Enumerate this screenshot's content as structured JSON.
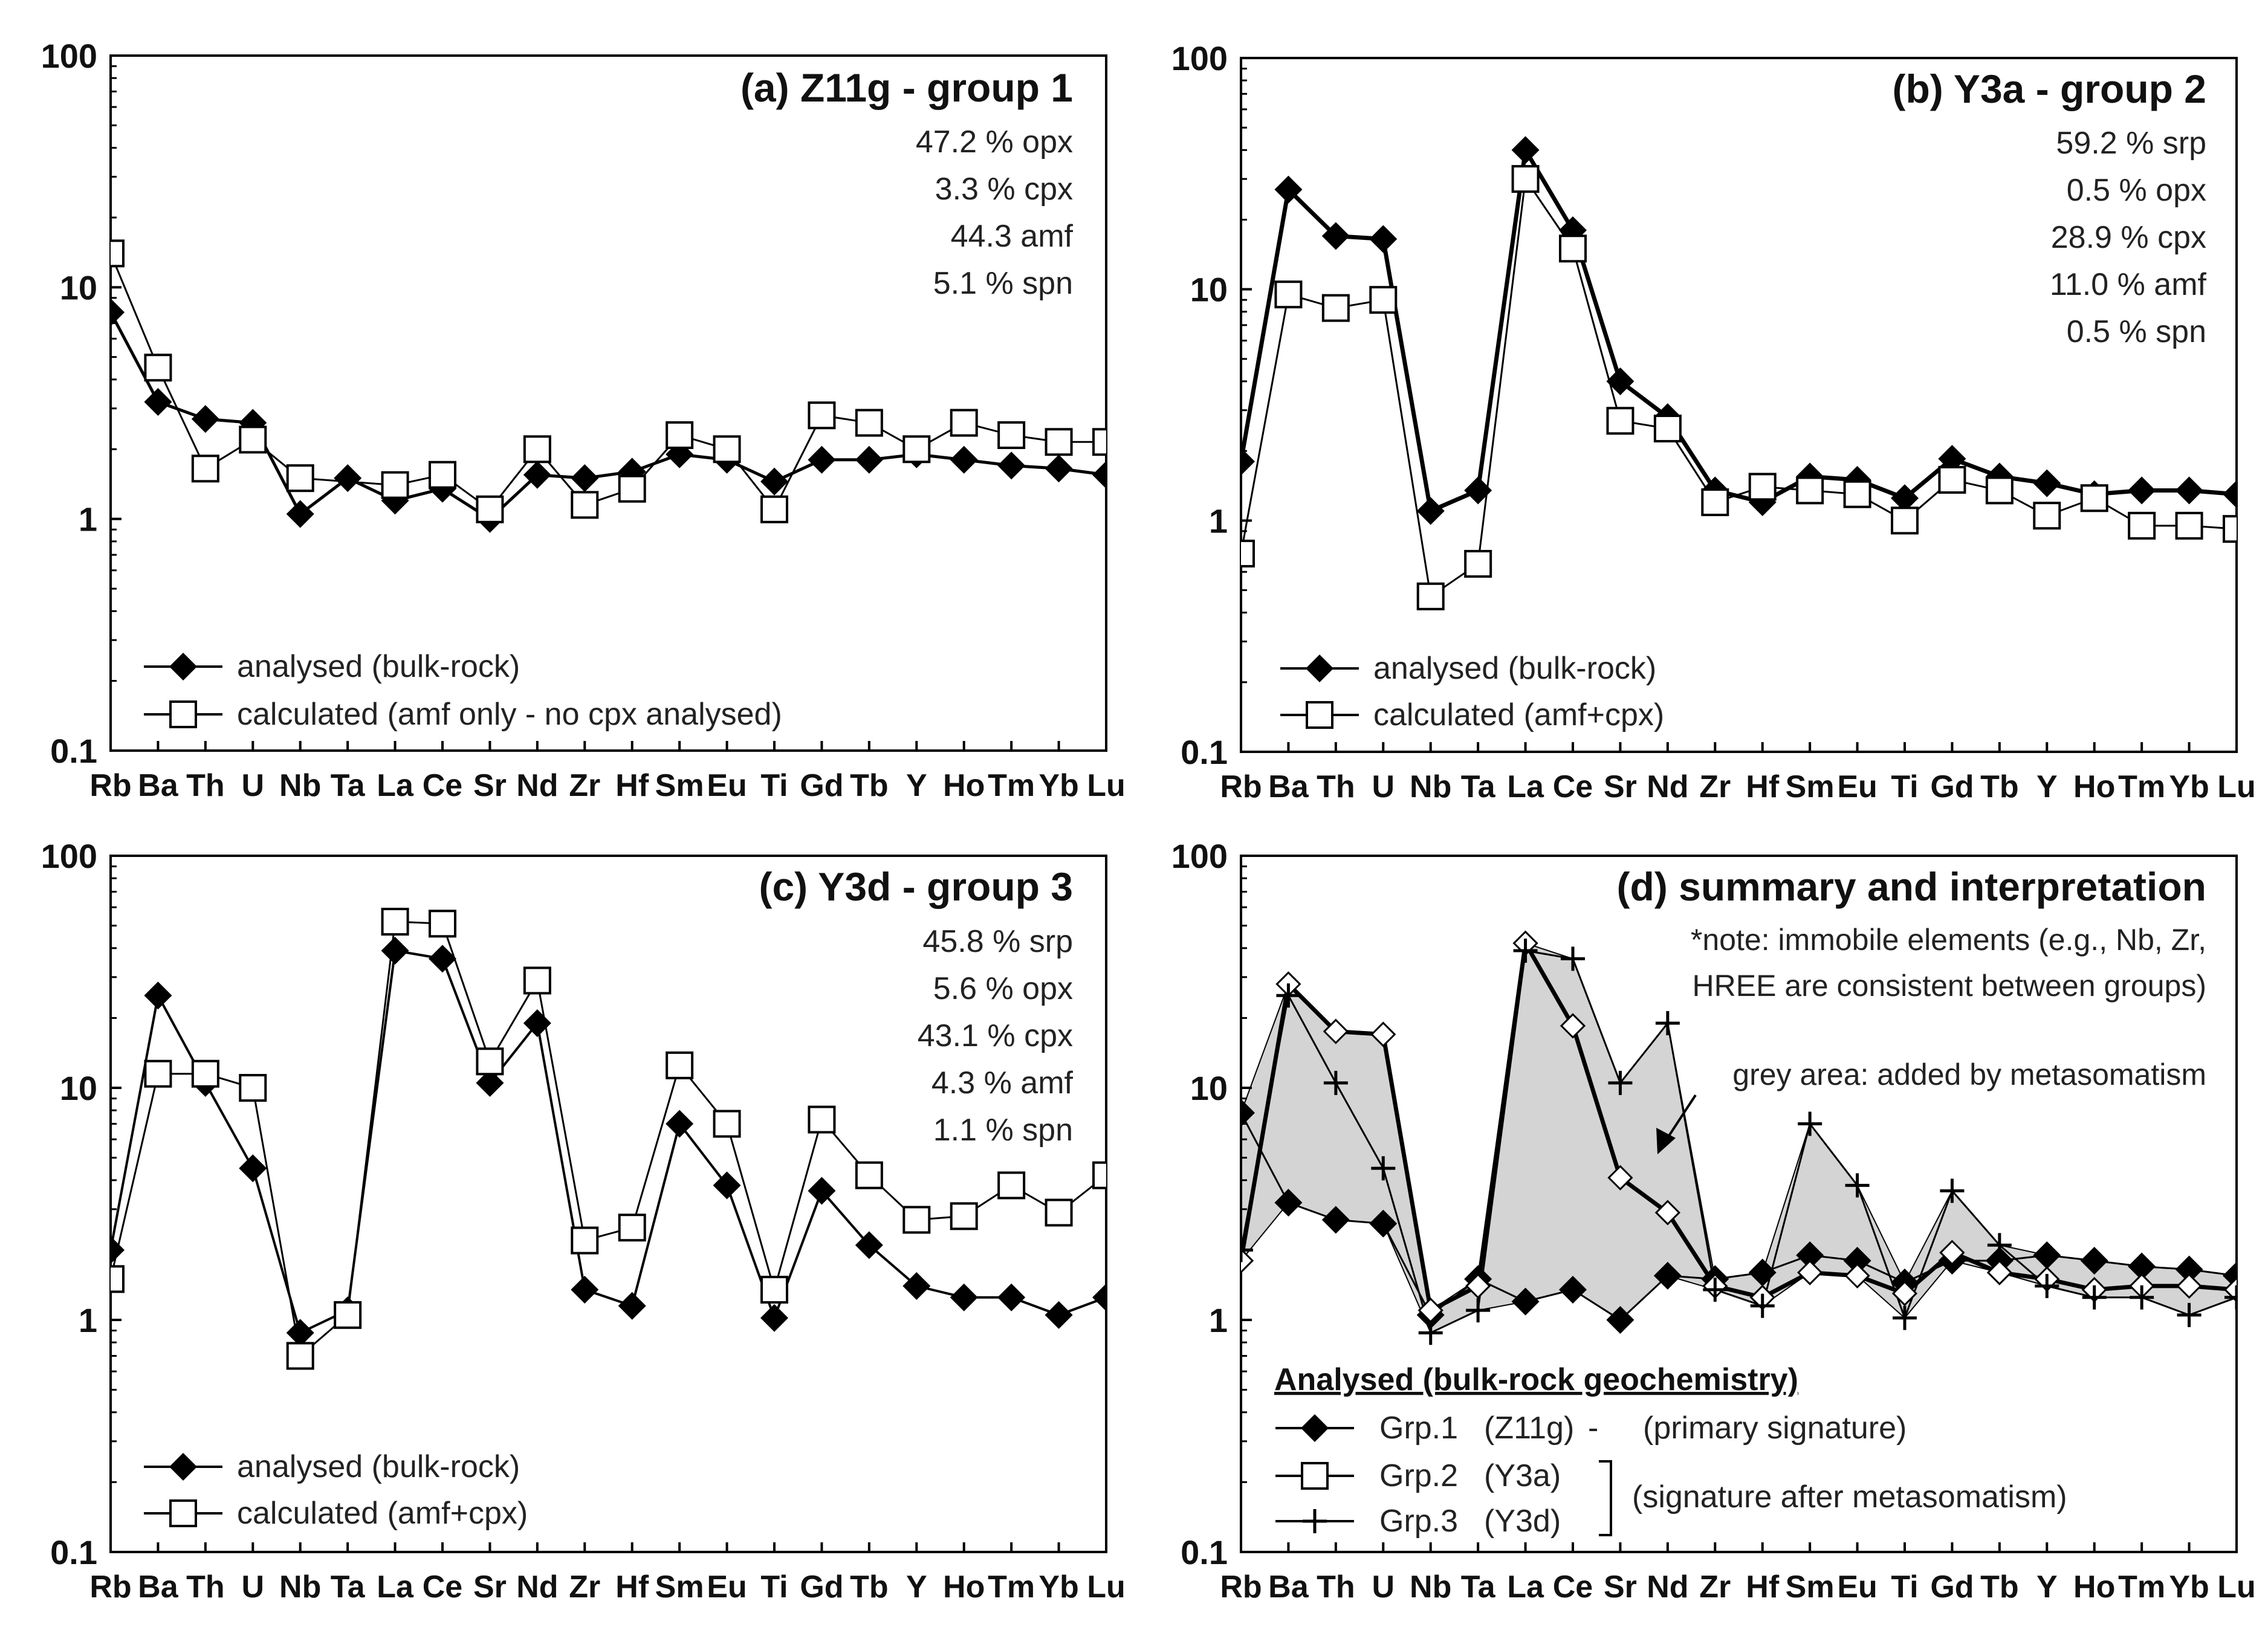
{
  "chart_data": [
    {
      "type": "line",
      "scale": "log",
      "title": "(a) Z11g - group 1",
      "ylim": [
        0.1,
        100
      ],
      "yticks": [
        "100",
        "10",
        "1",
        "0.1"
      ],
      "categories": [
        "Rb",
        "Ba",
        "Th",
        "U",
        "Nb",
        "Ta",
        "La",
        "Ce",
        "Sr",
        "Nd",
        "Zr",
        "Hf",
        "Sm",
        "Eu",
        "Ti",
        "Gd",
        "Tb",
        "Y",
        "Ho",
        "Tm",
        "Yb",
        "Lu"
      ],
      "annotations": [
        "47.2 % opx",
        "3.3 % cpx",
        "44.3 amf",
        "5.1 % spn"
      ],
      "series": [
        {
          "name": "analysed (bulk-rock)",
          "marker": "diamond",
          "values": [
            7.8,
            3.2,
            2.7,
            2.6,
            1.05,
            1.5,
            1.2,
            1.35,
            1.0,
            1.55,
            1.5,
            1.6,
            1.9,
            1.8,
            1.45,
            1.8,
            1.8,
            1.9,
            1.8,
            1.7,
            1.65,
            1.55
          ]
        },
        {
          "name": "calculated (amf only - no cpx analysed)",
          "marker": "square",
          "values": [
            14,
            4.5,
            1.65,
            2.2,
            1.5,
            null,
            1.4,
            1.55,
            1.1,
            2.0,
            1.15,
            1.35,
            2.3,
            2.0,
            1.1,
            2.8,
            2.6,
            2.0,
            2.6,
            2.3,
            2.15,
            2.15
          ]
        }
      ]
    },
    {
      "type": "line",
      "scale": "log",
      "title": "(b) Y3a - group 2",
      "ylim": [
        0.1,
        100
      ],
      "yticks": [
        "100",
        "10",
        "1",
        "0.1"
      ],
      "categories": [
        "Rb",
        "Ba",
        "Th",
        "U",
        "Nb",
        "Ta",
        "La",
        "Ce",
        "Sr",
        "Nd",
        "Zr",
        "Hf",
        "Sm",
        "Eu",
        "Ti",
        "Gd",
        "Tb",
        "Y",
        "Ho",
        "Tm",
        "Yb",
        "Lu"
      ],
      "annotations": [
        "59.2 % srp",
        "0.5 % opx",
        "28.9 % cpx",
        "11.0 % amf",
        "0.5 % spn"
      ],
      "series": [
        {
          "name": "analysed (bulk-rock)",
          "marker": "diamond",
          "values": [
            1.8,
            27,
            17,
            16.5,
            1.1,
            1.35,
            40,
            18,
            4.0,
            2.8,
            1.35,
            1.2,
            1.55,
            1.5,
            1.25,
            1.85,
            1.55,
            1.45,
            1.3,
            1.35,
            1.35,
            1.3
          ]
        },
        {
          "name": "calculated (amf+cpx)",
          "marker": "square",
          "values": [
            0.72,
            9.5,
            8.3,
            9.0,
            0.47,
            0.65,
            30,
            15,
            2.7,
            2.5,
            1.2,
            1.4,
            1.35,
            1.3,
            1.0,
            1.5,
            1.35,
            1.05,
            1.25,
            0.95,
            0.95,
            0.92
          ]
        }
      ]
    },
    {
      "type": "line",
      "scale": "log",
      "title": "(c) Y3d - group 3",
      "ylim": [
        0.1,
        100
      ],
      "yticks": [
        "100",
        "10",
        "1",
        "0.1"
      ],
      "categories": [
        "Rb",
        "Ba",
        "Th",
        "U",
        "Nb",
        "Ta",
        "La",
        "Ce",
        "Sr",
        "Nd",
        "Zr",
        "Hf",
        "Sm",
        "Eu",
        "Ti",
        "Gd",
        "Tb",
        "Y",
        "Ho",
        "Tm",
        "Yb",
        "Lu"
      ],
      "annotations": [
        "45.8 % srp",
        "5.6 % opx",
        "43.1 % cpx",
        "4.3 % amf",
        "1.1 % spn"
      ],
      "series": [
        {
          "name": "analysed (bulk-rock)",
          "marker": "diamond",
          "values": [
            2.0,
            25,
            10.5,
            4.5,
            0.88,
            1.1,
            39,
            36,
            10.5,
            19,
            1.35,
            1.15,
            7.0,
            3.8,
            1.02,
            3.6,
            2.1,
            1.4,
            1.25,
            1.25,
            1.05,
            1.25
          ]
        },
        {
          "name": "calculated (amf+cpx)",
          "marker": "square",
          "values": [
            1.5,
            11.5,
            11.5,
            10,
            0.7,
            1.05,
            52,
            51,
            13,
            29,
            2.2,
            2.5,
            12.5,
            7.0,
            1.35,
            7.3,
            4.2,
            2.7,
            2.8,
            3.8,
            2.9,
            4.2
          ]
        }
      ]
    },
    {
      "type": "line",
      "scale": "log",
      "title": "(d) summary and interpretation",
      "ylim": [
        0.1,
        100
      ],
      "yticks": [
        "100",
        "10",
        "1",
        "0.1"
      ],
      "categories": [
        "Rb",
        "Ba",
        "Th",
        "U",
        "Nb",
        "Ta",
        "La",
        "Ce",
        "Sr",
        "Nd",
        "Zr",
        "Hf",
        "Sm",
        "Eu",
        "Ti",
        "Gd",
        "Tb",
        "Y",
        "Ho",
        "Tm",
        "Yb",
        "Lu"
      ],
      "annotations": [
        "*note: immobile elements (e.g., Nb, Zr,",
        "HREE are consistent between groups)",
        "grey area: added by metasomatism"
      ],
      "legend_heading": "Analysed (bulk-rock geochemistry)",
      "legend_entries": [
        {
          "name": "Grp.1",
          "sample": "(Z11g)",
          "dash": "-",
          "note": "(primary signature)"
        },
        {
          "name": "Grp.2",
          "sample": "(Y3a)"
        },
        {
          "name": "Grp.3",
          "sample": "(Y3d)"
        }
      ],
      "legend_group_note": "(signature after metasomatism)",
      "series": [
        {
          "name": "Grp.1 (Z11g)",
          "marker": "diamond",
          "values": [
            7.8,
            3.2,
            2.7,
            2.6,
            1.05,
            1.5,
            1.2,
            1.35,
            1.0,
            1.55,
            1.5,
            1.6,
            1.9,
            1.8,
            1.45,
            1.8,
            1.8,
            1.9,
            1.8,
            1.7,
            1.65,
            1.55
          ]
        },
        {
          "name": "Grp.2 (Y3a)",
          "marker": "open-diamond",
          "values": [
            1.8,
            28,
            17.5,
            17,
            1.1,
            1.4,
            42,
            18.5,
            4.1,
            2.9,
            1.4,
            1.25,
            1.6,
            1.55,
            1.3,
            1.95,
            1.6,
            1.5,
            1.35,
            1.4,
            1.4,
            1.35
          ]
        },
        {
          "name": "Grp.3 (Y3d)",
          "marker": "plus",
          "values": [
            2.0,
            25,
            10.5,
            4.5,
            0.88,
            1.1,
            39,
            36,
            10.5,
            19,
            1.35,
            1.15,
            7.0,
            3.8,
            1.02,
            3.6,
            2.1,
            1.4,
            1.25,
            1.25,
            1.05,
            1.25
          ]
        }
      ]
    }
  ],
  "legends": {
    "a": [
      {
        "label": "analysed (bulk-rock)"
      },
      {
        "label": "calculated (amf only - no cpx analysed)"
      }
    ],
    "b": [
      {
        "label": "analysed (bulk-rock)"
      },
      {
        "label": "calculated (amf+cpx)"
      }
    ],
    "c": [
      {
        "label": "analysed (bulk-rock)"
      },
      {
        "label": "calculated (amf+cpx)"
      }
    ]
  }
}
